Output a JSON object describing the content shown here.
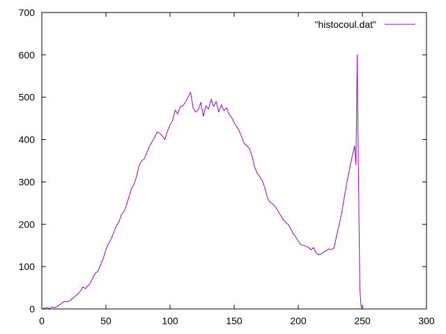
{
  "chart_data": {
    "type": "line",
    "title": "",
    "xlabel": "",
    "ylabel": "",
    "xlim": [
      0,
      300
    ],
    "ylim": [
      0,
      700
    ],
    "x_ticks": [
      0,
      50,
      100,
      150,
      200,
      250,
      300
    ],
    "y_ticks": [
      0,
      100,
      200,
      300,
      400,
      500,
      600,
      700
    ],
    "grid": false,
    "legend_position": "top-right",
    "series": [
      {
        "name": "\"histocoul.dat\"",
        "color": "#9400d3",
        "x": [
          0,
          2,
          4,
          6,
          8,
          10,
          12,
          14,
          16,
          18,
          20,
          22,
          24,
          26,
          28,
          30,
          32,
          34,
          36,
          38,
          40,
          42,
          44,
          46,
          48,
          50,
          52,
          54,
          56,
          58,
          60,
          62,
          64,
          66,
          68,
          70,
          72,
          74,
          76,
          78,
          80,
          82,
          84,
          86,
          88,
          90,
          92,
          94,
          96,
          98,
          100,
          102,
          104,
          106,
          108,
          110,
          112,
          114,
          116,
          118,
          120,
          122,
          124,
          126,
          128,
          130,
          132,
          134,
          136,
          138,
          140,
          142,
          144,
          146,
          148,
          150,
          152,
          154,
          156,
          158,
          160,
          162,
          164,
          166,
          168,
          170,
          172,
          174,
          176,
          178,
          180,
          182,
          184,
          186,
          188,
          190,
          192,
          194,
          196,
          198,
          200,
          202,
          204,
          206,
          208,
          210,
          212,
          214,
          216,
          218,
          220,
          222,
          224,
          226,
          228,
          230,
          232,
          234,
          236,
          238,
          240,
          242,
          244,
          245,
          246,
          247,
          248,
          249,
          250
        ],
        "y": [
          0,
          2,
          3,
          1,
          5,
          3,
          6,
          10,
          15,
          18,
          17,
          20,
          25,
          30,
          35,
          42,
          52,
          48,
          55,
          62,
          75,
          85,
          90,
          105,
          120,
          140,
          155,
          165,
          180,
          195,
          205,
          222,
          230,
          245,
          265,
          285,
          295,
          315,
          340,
          350,
          355,
          370,
          385,
          395,
          405,
          418,
          415,
          408,
          400,
          420,
          435,
          445,
          470,
          460,
          478,
          480,
          488,
          500,
          512,
          475,
          465,
          470,
          488,
          455,
          480,
          472,
          495,
          478,
          490,
          465,
          482,
          468,
          475,
          460,
          452,
          440,
          430,
          420,
          405,
          390,
          385,
          378,
          360,
          335,
          320,
          312,
          302,
          285,
          262,
          252,
          248,
          242,
          232,
          222,
          212,
          205,
          200,
          190,
          178,
          170,
          160,
          152,
          150,
          148,
          145,
          140,
          145,
          132,
          128,
          130,
          135,
          138,
          142,
          140,
          145,
          175,
          200,
          230,
          265,
          300,
          330,
          360,
          385,
          340,
          600,
          300,
          50,
          5,
          0
        ]
      }
    ]
  }
}
